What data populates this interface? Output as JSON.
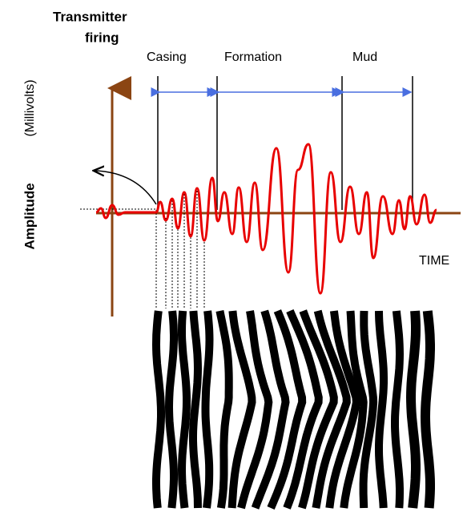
{
  "title_line1": "Transmitter",
  "title_line2": "firing",
  "segments": [
    "Casing",
    "Formation",
    "Mud"
  ],
  "y_label": "Amplitude",
  "y_unit": "(Millivolts)",
  "x_label": "TIME"
}
